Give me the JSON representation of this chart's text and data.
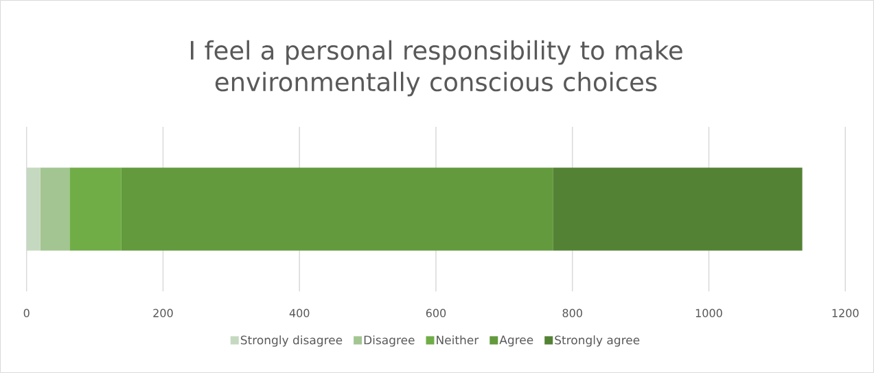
{
  "chart_data": {
    "type": "bar",
    "orientation": "horizontal",
    "stacked": true,
    "title": "I feel a personal responsibility to make environmentally conscious choices",
    "categories": [
      null
    ],
    "series": [
      {
        "name": "Strongly disagree",
        "color": "#c5d9c0",
        "values": [
          20
        ]
      },
      {
        "name": "Disagree",
        "color": "#a3c592",
        "values": [
          43
        ]
      },
      {
        "name": "Neither",
        "color": "#70ad47",
        "values": [
          76
        ]
      },
      {
        "name": "Agree",
        "color": "#639a3e",
        "values": [
          633
        ]
      },
      {
        "name": "Strongly agree",
        "color": "#548235",
        "values": [
          365
        ]
      }
    ],
    "xlim": [
      0,
      1200
    ],
    "xticks": [
      0,
      200,
      400,
      600,
      800,
      1000,
      1200
    ],
    "grid": "x",
    "legend": "bottom"
  }
}
